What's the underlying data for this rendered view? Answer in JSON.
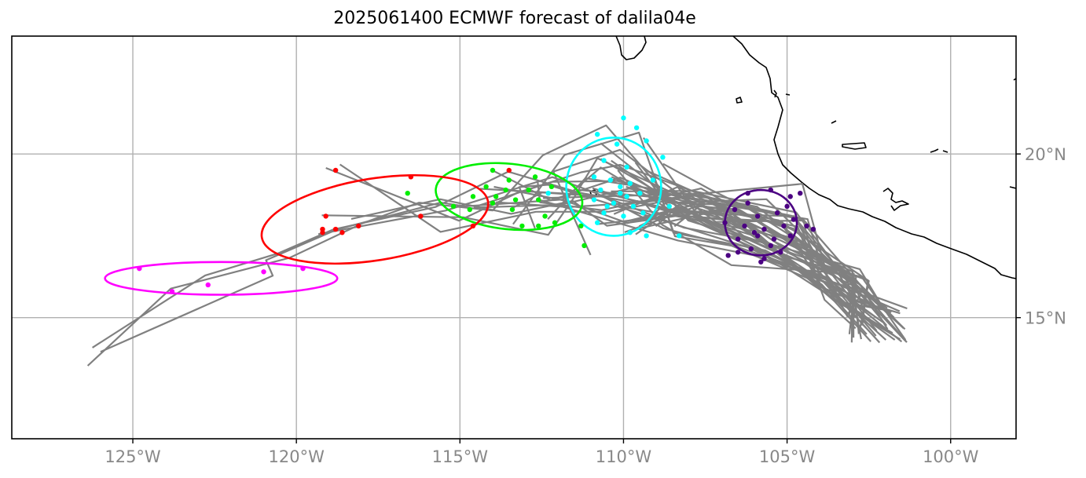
{
  "title": "2025061400 ECMWF forecast of dalila04e",
  "x_ticks": [
    "125°W",
    "120°W",
    "115°W",
    "110°W",
    "105°W",
    "100°W"
  ],
  "y_ticks": [
    "20°N",
    "15°N"
  ],
  "chart_data": {
    "type": "map-track-forecast",
    "title": "2025061400 ECMWF forecast of dalila04e",
    "extent": {
      "lon": [
        -128.7,
        -98.0
      ],
      "lat": [
        11.3,
        23.6
      ]
    },
    "gridlines": {
      "lon": [
        -125,
        -120,
        -115,
        -110,
        -105,
        -100
      ],
      "lat": [
        20,
        15
      ]
    },
    "colors": {
      "track": "#808080",
      "grid": "#b0b0b0",
      "coast": "#000000"
    },
    "lead_groups": [
      {
        "color": "#4b0082",
        "center": [
          -105.8,
          17.9
        ],
        "radii": [
          1.1,
          1.0
        ],
        "points": [
          [
            -106.2,
            18.8
          ],
          [
            -105.5,
            18.9
          ],
          [
            -104.9,
            18.7
          ],
          [
            -106.6,
            18.3
          ],
          [
            -105.9,
            18.1
          ],
          [
            -105.3,
            18.2
          ],
          [
            -104.8,
            18.0
          ],
          [
            -106.9,
            17.9
          ],
          [
            -106.3,
            17.8
          ],
          [
            -105.7,
            17.7
          ],
          [
            -105.1,
            17.8
          ],
          [
            -104.4,
            17.8
          ],
          [
            -106.5,
            17.4
          ],
          [
            -105.9,
            17.5
          ],
          [
            -105.4,
            17.4
          ],
          [
            -104.9,
            17.5
          ],
          [
            -106.1,
            17.1
          ],
          [
            -105.5,
            17.2
          ],
          [
            -106.8,
            16.9
          ],
          [
            -105.7,
            16.8
          ],
          [
            -106.2,
            18.5
          ],
          [
            -105.0,
            18.4
          ],
          [
            -106.0,
            17.6
          ],
          [
            -105.2,
            17.0
          ],
          [
            -104.2,
            17.7
          ],
          [
            -106.5,
            17.0
          ],
          [
            -105.8,
            16.7
          ],
          [
            -104.6,
            18.8
          ]
        ]
      },
      {
        "color": "#00ffff",
        "center": [
          -110.3,
          19.0
        ],
        "radii": [
          1.45,
          1.5
        ],
        "points": [
          [
            -110.0,
            21.1
          ],
          [
            -109.6,
            20.8
          ],
          [
            -110.8,
            20.6
          ],
          [
            -110.2,
            20.3
          ],
          [
            -109.3,
            20.4
          ],
          [
            -110.6,
            19.8
          ],
          [
            -109.9,
            19.6
          ],
          [
            -110.9,
            19.3
          ],
          [
            -110.4,
            19.2
          ],
          [
            -109.8,
            19.1
          ],
          [
            -109.1,
            19.2
          ],
          [
            -110.7,
            18.9
          ],
          [
            -110.1,
            18.8
          ],
          [
            -109.5,
            18.8
          ],
          [
            -110.9,
            18.6
          ],
          [
            -110.3,
            18.5
          ],
          [
            -109.7,
            18.4
          ],
          [
            -110.6,
            18.2
          ],
          [
            -110.0,
            18.1
          ],
          [
            -109.4,
            18.2
          ],
          [
            -110.8,
            17.9
          ],
          [
            -109.8,
            17.6
          ],
          [
            -109.3,
            17.5
          ],
          [
            -108.6,
            18.4
          ],
          [
            -108.3,
            17.5
          ],
          [
            -112.3,
            18.8
          ],
          [
            -108.8,
            19.9
          ],
          [
            -109.9,
            18.7
          ],
          [
            -110.5,
            18.4
          ],
          [
            -110.1,
            19.0
          ]
        ]
      },
      {
        "color": "#00ee00",
        "center": [
          -113.5,
          18.7
        ],
        "radii": [
          2.25,
          1.0
        ],
        "points": [
          [
            -114.0,
            19.5
          ],
          [
            -113.5,
            19.2
          ],
          [
            -112.7,
            19.3
          ],
          [
            -114.2,
            19.0
          ],
          [
            -113.6,
            18.9
          ],
          [
            -112.9,
            18.9
          ],
          [
            -112.2,
            19.0
          ],
          [
            -114.6,
            18.7
          ],
          [
            -113.9,
            18.7
          ],
          [
            -113.3,
            18.6
          ],
          [
            -112.6,
            18.6
          ],
          [
            -115.2,
            18.4
          ],
          [
            -114.7,
            18.3
          ],
          [
            -113.1,
            17.8
          ],
          [
            -112.6,
            17.8
          ],
          [
            -112.1,
            17.9
          ],
          [
            -111.3,
            17.8
          ],
          [
            -116.6,
            18.8
          ],
          [
            -111.2,
            17.2
          ],
          [
            -113.4,
            18.3
          ],
          [
            -112.4,
            18.1
          ],
          [
            -114.0,
            18.5
          ]
        ]
      },
      {
        "color": "#ff0000",
        "center": [
          -117.6,
          18.0
        ],
        "radii": [
          3.5,
          1.25
        ],
        "points": [
          [
            -118.8,
            19.5
          ],
          [
            -113.5,
            19.5
          ],
          [
            -116.5,
            19.3
          ],
          [
            -119.1,
            18.1
          ],
          [
            -116.2,
            18.1
          ],
          [
            -118.1,
            17.8
          ],
          [
            -119.2,
            17.7
          ],
          [
            -118.8,
            17.7
          ],
          [
            -119.2,
            17.6
          ],
          [
            -118.6,
            17.6
          ],
          [
            -114.6,
            17.8
          ]
        ]
      },
      {
        "color": "#ff00ff",
        "center": [
          -122.3,
          16.2
        ],
        "radii": [
          3.55,
          0.5
        ],
        "points": [
          [
            -124.8,
            16.5
          ],
          [
            -122.7,
            16.0
          ],
          [
            -123.8,
            15.8
          ],
          [
            -121.0,
            16.4
          ],
          [
            -119.8,
            16.5
          ]
        ]
      }
    ]
  }
}
